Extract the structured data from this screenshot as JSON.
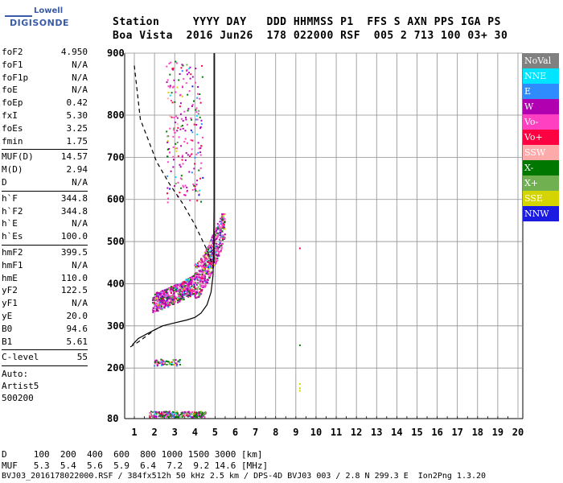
{
  "logo": {
    "line1": "Lowell",
    "line2": "DIGISONDE"
  },
  "header": {
    "line1": "Station     YYYY DAY   DDD HHMMSS P1  FFS S AXN PPS IGA PS",
    "line2": "Boa Vista  2016 Jun26  178 022000 RSF  005 2 713 100 03+ 30"
  },
  "params": {
    "group1": [
      {
        "k": "foF2",
        "v": "4.950"
      },
      {
        "k": "foF1",
        "v": "N/A"
      },
      {
        "k": "foF1p",
        "v": "N/A"
      },
      {
        "k": "foE",
        "v": "N/A"
      },
      {
        "k": "foEp",
        "v": "0.42"
      },
      {
        "k": "fxI",
        "v": "5.30"
      },
      {
        "k": "foEs",
        "v": "3.25"
      },
      {
        "k": "fmin",
        "v": "1.75"
      }
    ],
    "group2": [
      {
        "k": "MUF(D)",
        "v": "14.57"
      },
      {
        "k": "M(D)",
        "v": "2.94"
      },
      {
        "k": "D",
        "v": "N/A"
      }
    ],
    "group3": [
      {
        "k": "h`F",
        "v": "344.8"
      },
      {
        "k": "h`F2",
        "v": "344.8"
      },
      {
        "k": "h`E",
        "v": "N/A"
      },
      {
        "k": "h`Es",
        "v": "100.0"
      }
    ],
    "group4": [
      {
        "k": "hmF2",
        "v": "399.5"
      },
      {
        "k": "hmF1",
        "v": "N/A"
      },
      {
        "k": "hmE",
        "v": "110.0"
      },
      {
        "k": "yF2",
        "v": "122.5"
      },
      {
        "k": "yF1",
        "v": "N/A"
      },
      {
        "k": "yE",
        "v": "20.0"
      },
      {
        "k": "B0",
        "v": "94.6"
      },
      {
        "k": "B1",
        "v": "5.61"
      }
    ],
    "group5": [
      {
        "k": "C-level",
        "v": "55"
      }
    ],
    "auto": [
      "Auto:",
      "Artist5",
      "500200"
    ]
  },
  "legend": [
    {
      "label": "NoVal",
      "color": "#808080"
    },
    {
      "label": "NNE",
      "color": "#00e5ff"
    },
    {
      "label": "E",
      "color": "#2f8cff"
    },
    {
      "label": "W",
      "color": "#b000b0"
    },
    {
      "label": "Vo-",
      "color": "#ff40c0"
    },
    {
      "label": "Vo+",
      "color": "#ff0040"
    },
    {
      "label": "SSW",
      "color": "#ffaaaa"
    },
    {
      "label": "X-",
      "color": "#007800"
    },
    {
      "label": "X+",
      "color": "#70b050"
    },
    {
      "label": "SSE",
      "color": "#d4d400"
    },
    {
      "label": "NNW",
      "color": "#1a1ae0"
    }
  ],
  "bottom": {
    "line1": "D     100  200  400  600  800 1000 1500 3000 [km]",
    "line2": "MUF   5.3  5.4  5.6  5.9  6.4  7.2  9.2 14.6 [MHz]",
    "line3": "BVJ03_2016178022000.RSF / 384fx512h 50 kHz 2.5 km / DPS-4D BVJ03 003 / 2.8 N 299.3 E  Ion2Png 1.3.20"
  },
  "chart_data": {
    "type": "scatter",
    "title": "",
    "xlabel": "",
    "ylabel": "",
    "xlim": [
      1,
      20
    ],
    "ylim": [
      80,
      900
    ],
    "x_ticks": [
      1,
      2,
      3,
      4,
      5,
      6,
      7,
      8,
      9,
      10,
      11,
      12,
      13,
      14,
      15,
      16,
      17,
      18,
      19,
      20
    ],
    "y_ticks": [
      80,
      200,
      300,
      400,
      500,
      600,
      700,
      800,
      900
    ],
    "grid": true,
    "echo_clusters": [
      {
        "name": "Es trace",
        "x_range": [
          1.75,
          4.6
        ],
        "y_range": [
          83,
          97
        ]
      },
      {
        "name": "Es 2nd hop",
        "x_range": [
          2.0,
          3.3
        ],
        "y_range": [
          205,
          220
        ]
      },
      {
        "name": "F2 trace",
        "x_range": [
          1.9,
          5.6
        ],
        "y_range": [
          335,
          560
        ]
      },
      {
        "name": "F2 multihop",
        "x_range": [
          2.5,
          4.4
        ],
        "y_range": [
          590,
          900
        ]
      },
      {
        "name": "isolated echoes",
        "points": [
          [
            9.2,
            484
          ],
          [
            9.2,
            254
          ],
          [
            9.2,
            160
          ]
        ]
      }
    ],
    "profile_curve": [
      [
        0.9,
        255
      ],
      [
        1.2,
        270
      ],
      [
        1.7,
        283
      ],
      [
        2.1,
        293
      ],
      [
        2.4,
        300
      ],
      [
        3.0,
        307
      ],
      [
        3.6,
        314
      ],
      [
        4.0,
        320
      ],
      [
        4.3,
        330
      ],
      [
        4.6,
        350
      ],
      [
        4.8,
        380
      ],
      [
        4.9,
        420
      ],
      [
        4.93,
        500
      ],
      [
        4.95,
        600
      ],
      [
        4.95,
        900
      ]
    ],
    "topside_curve": [
      [
        1.0,
        880
      ],
      [
        1.3,
        790
      ],
      [
        1.7,
        740
      ],
      [
        2.1,
        690
      ],
      [
        2.7,
        640
      ],
      [
        3.4,
        590
      ],
      [
        4.0,
        540
      ],
      [
        4.6,
        480
      ],
      [
        4.9,
        440
      ]
    ],
    "foF2_line": 4.95
  }
}
